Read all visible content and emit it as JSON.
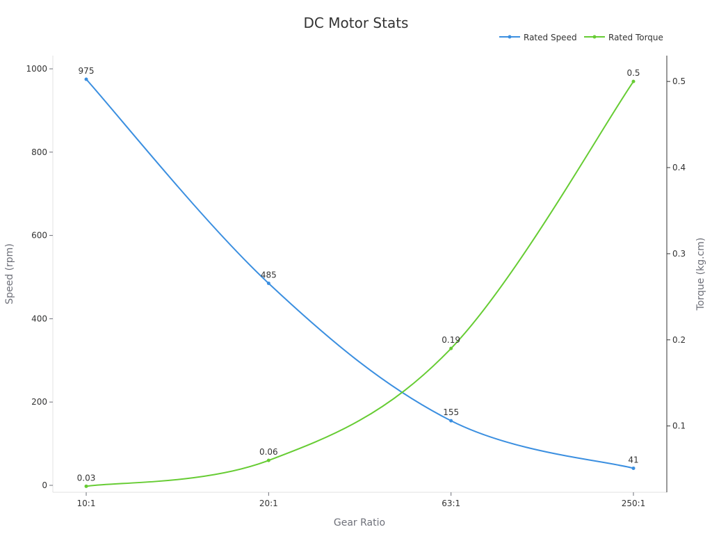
{
  "chart_data": {
    "type": "line",
    "title": "DC Motor Stats",
    "xlabel": "Gear Ratio",
    "ylabel_left": "Speed (rpm)",
    "ylabel_right": "Torque (kg.cm)",
    "categories": [
      "10:1",
      "20:1",
      "63:1",
      "250:1"
    ],
    "left_axis": {
      "min": 0,
      "max": 1000,
      "ticks": [
        "0",
        "200",
        "400",
        "600",
        "800",
        "1000"
      ]
    },
    "right_axis": {
      "min": 0.023,
      "max": 0.53,
      "ticks": [
        "0.1",
        "0.2",
        "0.3",
        "0.4",
        "0.5"
      ]
    },
    "grid": false,
    "legend_position": "top-right",
    "series": [
      {
        "name": "Rated Speed",
        "axis": "left",
        "color": "#3b8fe0",
        "values": [
          975,
          485,
          155,
          41
        ],
        "labels": [
          "975",
          "485",
          "155",
          "41"
        ]
      },
      {
        "name": "Rated Torque",
        "axis": "right",
        "color": "#66cc33",
        "values": [
          0.03,
          0.06,
          0.19,
          0.5
        ],
        "labels": [
          "0.03",
          "0.06",
          "0.19",
          "0.5"
        ]
      }
    ]
  }
}
